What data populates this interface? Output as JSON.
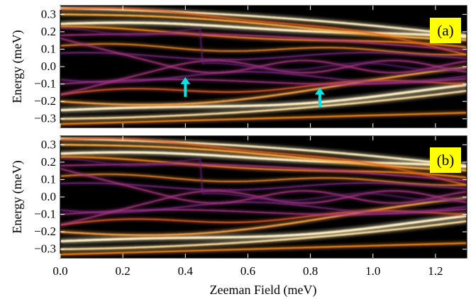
{
  "chart_data": [
    {
      "type": "heatmap",
      "panel_label": "(a)",
      "xlabel": "Zeeman Field (meV)",
      "ylabel": "Energy (meV)",
      "xlim": [
        0.0,
        1.3
      ],
      "ylim": [
        -0.35,
        0.35
      ],
      "x_ticks": [
        "0.0",
        "0.2",
        "0.4",
        "0.6",
        "0.8",
        "1.0",
        "1.2"
      ],
      "y_ticks": [
        "-0.3",
        "-0.2",
        "-0.1",
        "0.0",
        "0.1",
        "0.2",
        "0.3"
      ],
      "colormap": "inferno",
      "arrows": [
        {
          "x": 0.4,
          "y": -0.06,
          "color": "#00e5e5"
        },
        {
          "x": 0.83,
          "y": -0.12,
          "color": "#00e5e5"
        }
      ]
    },
    {
      "type": "heatmap",
      "panel_label": "(b)",
      "xlabel": "Zeeman Field (meV)",
      "ylabel": "Energy (meV)",
      "xlim": [
        0.0,
        1.3
      ],
      "ylim": [
        -0.35,
        0.35
      ],
      "x_ticks": [
        "0.0",
        "0.2",
        "0.4",
        "0.6",
        "0.8",
        "1.0",
        "1.2"
      ],
      "y_ticks": [
        "-0.3",
        "-0.2",
        "-0.1",
        "0.0",
        "0.1",
        "0.2",
        "0.3"
      ],
      "colormap": "inferno"
    }
  ],
  "colors": {
    "background": "#000000",
    "band_bright": "#fff3c8",
    "band_orange": "#f58a1c",
    "band_purple": "#7a2a8c",
    "arrow": "#00e5e5",
    "panel_label_bg": "#ffff00"
  }
}
